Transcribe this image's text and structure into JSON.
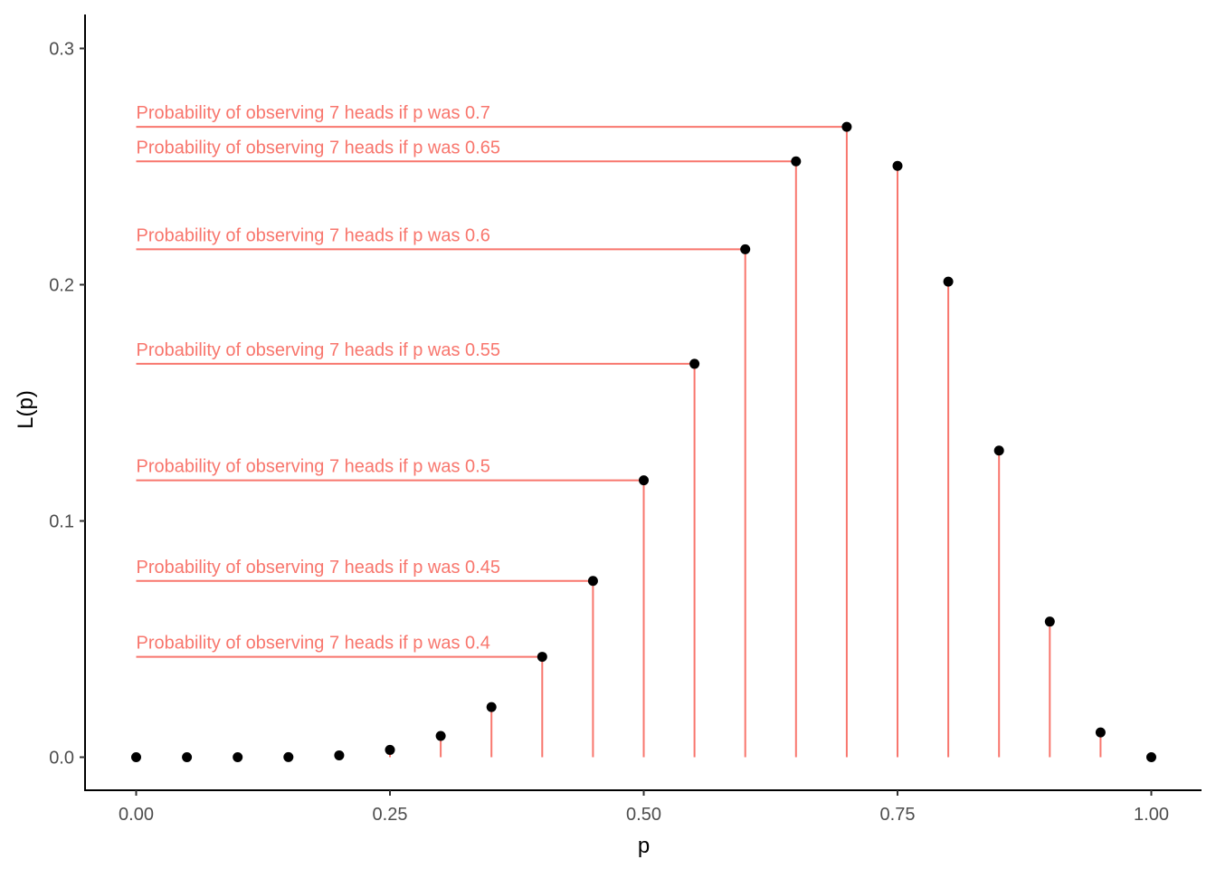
{
  "chart_data": {
    "type": "scatter",
    "title": "",
    "xlabel": "p",
    "ylabel": "L(p)",
    "xlim": [
      0,
      1
    ],
    "ylim": [
      0,
      0.3
    ],
    "x_ticks": [
      0,
      0.25,
      0.5,
      0.75,
      1
    ],
    "x_tick_labels": [
      "0.00",
      "0.25",
      "0.50",
      "0.75",
      "1.00"
    ],
    "y_ticks": [
      0,
      0.1,
      0.2,
      0.3
    ],
    "y_tick_labels": [
      "0.0",
      "0.1",
      "0.2",
      "0.3"
    ],
    "grid": false,
    "point_color": "#000000",
    "segment_color": "#f8766d",
    "series": [
      {
        "x": [
          0,
          0.05,
          0.1,
          0.15,
          0.2,
          0.25,
          0.3,
          0.35,
          0.4,
          0.45,
          0.5,
          0.55,
          0.6,
          0.65,
          0.7,
          0.75,
          0.8,
          0.85,
          0.9,
          0.95,
          1
        ],
        "y": [
          0,
          6e-07,
          8.7e-06,
          3.94e-05,
          0.000786,
          0.00309,
          0.009,
          0.0212,
          0.0425,
          0.0746,
          0.1172,
          0.1665,
          0.215,
          0.2522,
          0.2668,
          0.2503,
          0.2013,
          0.1298,
          0.0574,
          0.0105,
          0
        ]
      }
    ],
    "annotations": [
      {
        "p": 0.4,
        "y": 0.0425,
        "text": "Probability of observing 7 heads if p was 0.4"
      },
      {
        "p": 0.45,
        "y": 0.0746,
        "text": "Probability of observing 7 heads if p was 0.45"
      },
      {
        "p": 0.5,
        "y": 0.1172,
        "text": "Probability of observing 7 heads if p was 0.5"
      },
      {
        "p": 0.55,
        "y": 0.1665,
        "text": "Probability of observing 7 heads if p was 0.55"
      },
      {
        "p": 0.6,
        "y": 0.215,
        "text": "Probability of observing 7 heads if p was 0.6"
      },
      {
        "p": 0.65,
        "y": 0.2522,
        "text": "Probability of observing 7 heads if p was 0.65"
      },
      {
        "p": 0.7,
        "y": 0.2668,
        "text": "Probability of observing 7 heads if p was 0.7"
      }
    ]
  }
}
